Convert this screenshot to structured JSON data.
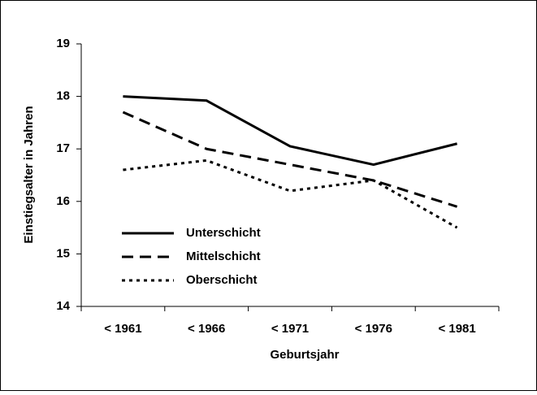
{
  "chart_data": {
    "type": "line",
    "x_label": "Geburtsjahr",
    "y_label": "Einstiegsalter in Jahren",
    "categories": [
      "< 1961",
      "< 1966",
      "< 1971",
      "< 1976",
      "< 1981"
    ],
    "series": [
      {
        "name": "Unterschicht",
        "color": "#000000",
        "dash": "solid",
        "values": [
          18.0,
          17.92,
          17.05,
          16.7,
          17.1
        ]
      },
      {
        "name": "Mittelschicht",
        "color": "#000000",
        "dash": "dashed",
        "values": [
          17.7,
          17.0,
          16.7,
          16.4,
          15.9
        ]
      },
      {
        "name": "Oberschicht",
        "color": "#000000",
        "dash": "dotted",
        "values": [
          16.6,
          16.78,
          16.2,
          16.4,
          15.5
        ]
      }
    ],
    "ylim": [
      14,
      19
    ],
    "yticks": [
      14,
      15,
      16,
      17,
      18,
      19
    ],
    "legend": "center-left"
  }
}
